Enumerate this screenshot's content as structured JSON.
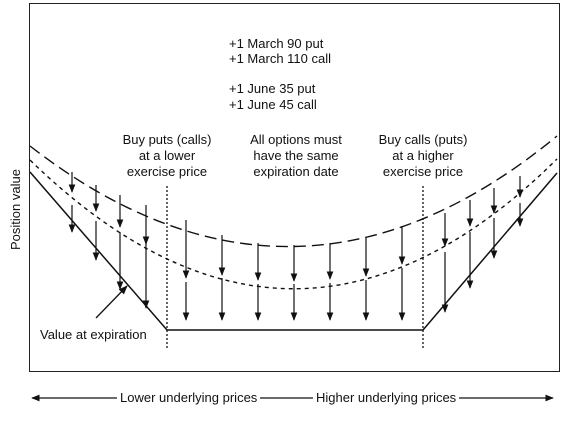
{
  "legend": {
    "line1": "+1 March 90 put",
    "line2": "+1 March 110 call",
    "line3": "+1 June 35 put",
    "line4": "+1 June 45 call"
  },
  "annotations": {
    "left": [
      "Buy puts (calls)",
      "at a lower",
      "exercise price"
    ],
    "middle": [
      "All options must",
      "have the same",
      "expiration date"
    ],
    "right": [
      "Buy calls (puts)",
      "at a higher",
      "exercise price"
    ],
    "expiration": "Value at expiration"
  },
  "axes": {
    "y_label": "Position value",
    "x_left_label": "Lower underlying prices",
    "x_right_label": "Higher underlying prices"
  },
  "curves": [
    {
      "name": "upper-curve",
      "style": "long-dash"
    },
    {
      "name": "lower-curve",
      "style": "short-dash"
    },
    {
      "name": "expiration-value",
      "style": "solid"
    }
  ]
}
